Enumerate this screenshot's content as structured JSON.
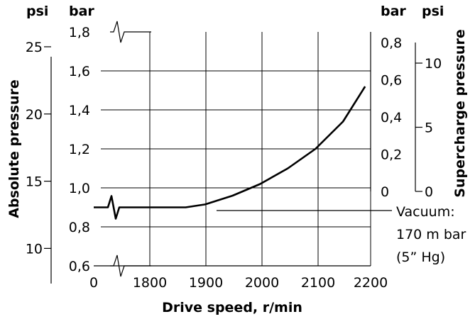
{
  "chart_data": {
    "type": "line",
    "xlabel": "Drive speed, r/min",
    "ylabel_left": "Absolute pressure",
    "ylabel_right": "Supercharge pressure",
    "unit_psi_left": "psi",
    "unit_bar_left": "bar",
    "unit_bar_right": "bar",
    "unit_psi_right": "psi",
    "x_ticks": [
      "0",
      "1800",
      "1900",
      "2000",
      "2100",
      "2200"
    ],
    "y_bar_abs_ticks": [
      "1,8",
      "1,6",
      "1,4",
      "1,2",
      "1,0",
      "0,8",
      "0,6"
    ],
    "y_psi_abs_ticks": [
      "25",
      "20",
      "15",
      "10"
    ],
    "y_bar_super_ticks": [
      "0,8",
      "0,6",
      "0,4",
      "0,2",
      "0"
    ],
    "y_psi_super_ticks": [
      "10",
      "5",
      "0"
    ],
    "annotation": [
      "Vacuum:",
      "170 m bar",
      "(5” Hg)"
    ],
    "series": [
      {
        "x": [
          0,
          1800,
          1865,
          1900,
          1950,
          2000,
          2050,
          2100,
          2150,
          2190
        ],
        "y": [
          0.9,
          0.9,
          0.9,
          0.915,
          0.96,
          1.02,
          1.1,
          1.2,
          1.34,
          1.52
        ]
      }
    ]
  }
}
